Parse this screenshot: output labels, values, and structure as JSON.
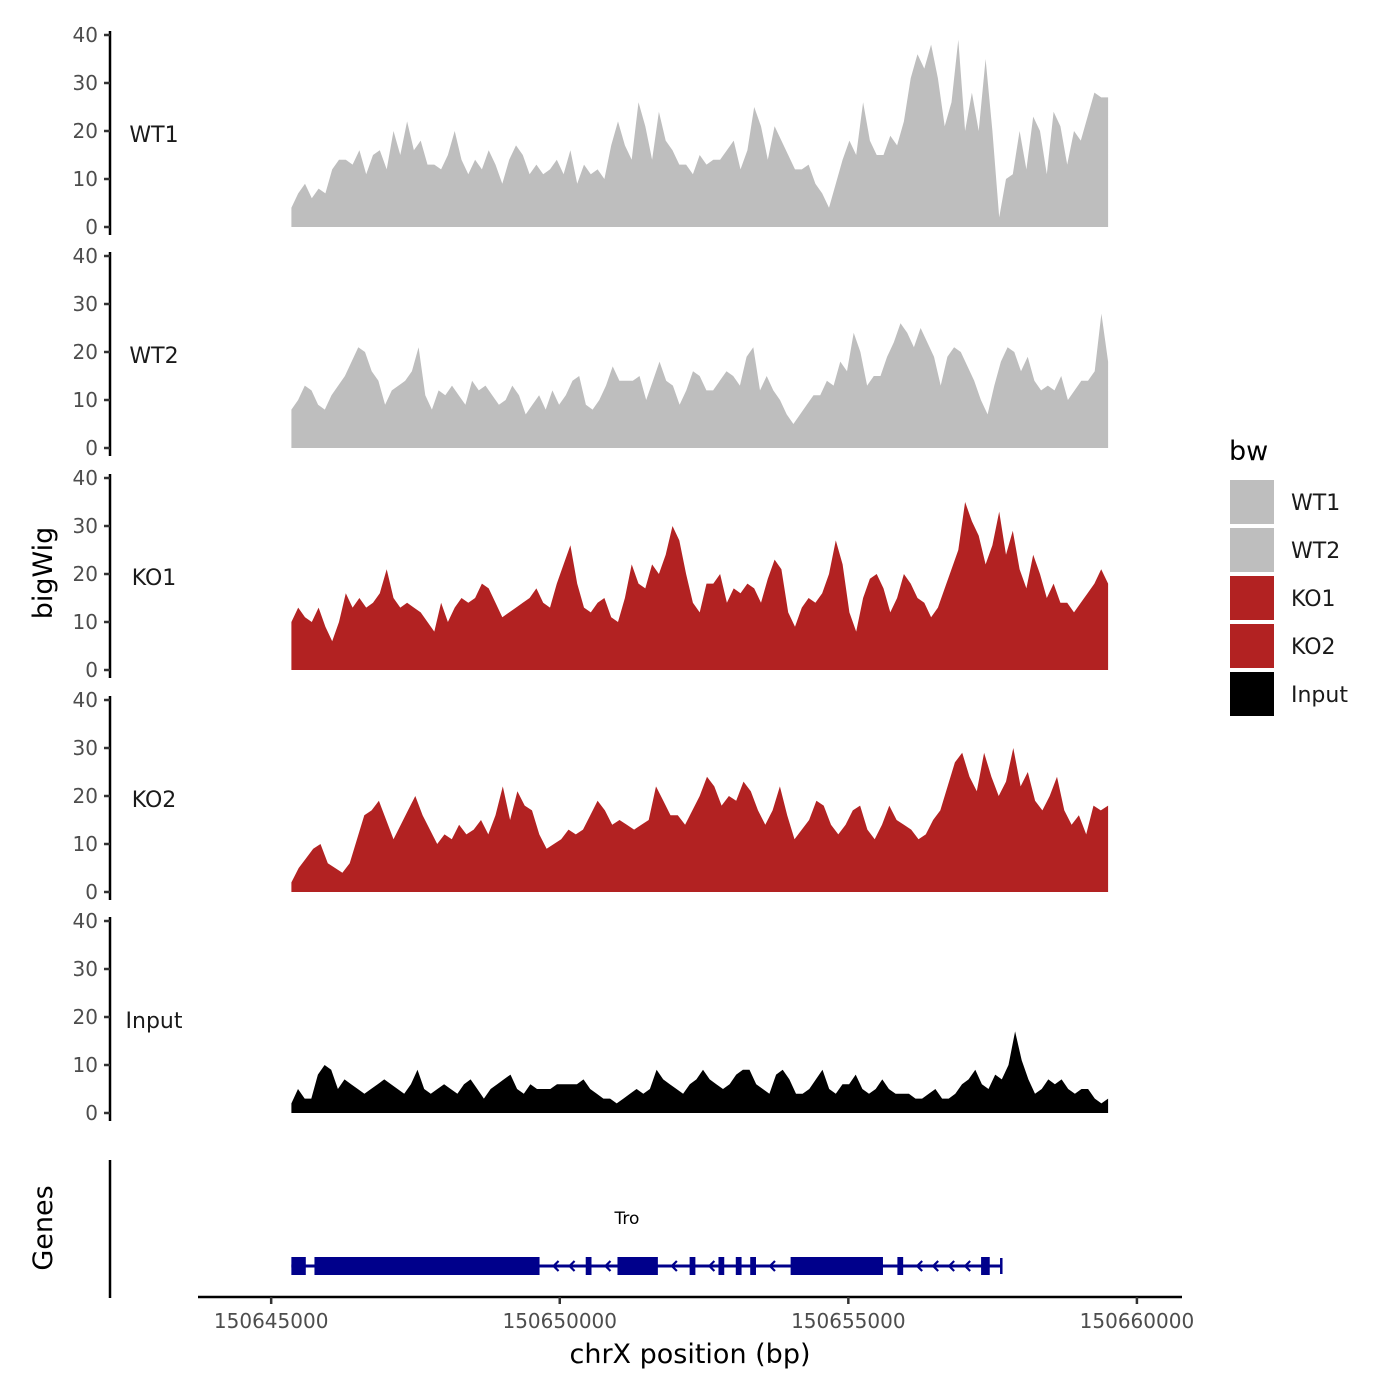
{
  "chart_data": {
    "type": "area",
    "title": "",
    "ylabel": "bigWig",
    "xlabel": "chrX position (bp)",
    "genes_label": "Genes",
    "xlim": [
      150644200,
      150660400
    ],
    "x_ticks": [
      150645000,
      150650000,
      150655000,
      150660000
    ],
    "x_tick_labels": [
      "150645000",
      "150650000",
      "150655000",
      "150660000"
    ],
    "ylim": [
      0,
      40
    ],
    "y_ticks": [
      0,
      10,
      20,
      30,
      40
    ],
    "y_tick_labels": [
      "0",
      "10",
      "20",
      "30",
      "40"
    ],
    "legend": {
      "title": "bw",
      "position": "right",
      "items": [
        {
          "label": "WT1",
          "color": "#bebebe"
        },
        {
          "label": "WT2",
          "color": "#bebebe"
        },
        {
          "label": "KO1",
          "color": "#b22222"
        },
        {
          "label": "KO2",
          "color": "#b22222"
        },
        {
          "label": "Input",
          "color": "#000000"
        }
      ]
    },
    "series": [
      {
        "name": "WT1",
        "color": "#bebebe",
        "x_start": 150645350,
        "x_end": 150659500,
        "values": [
          4,
          7,
          9,
          6,
          8,
          7,
          12,
          14,
          14,
          13,
          16,
          11,
          15,
          16,
          12,
          20,
          15,
          22,
          16,
          18,
          13,
          13,
          12,
          15,
          20,
          14,
          11,
          14,
          12,
          16,
          13,
          9,
          14,
          17,
          15,
          11,
          13,
          11,
          12,
          14,
          11,
          16,
          9,
          13,
          11,
          12,
          10,
          17,
          22,
          17,
          14,
          26,
          21,
          14,
          24,
          18,
          16,
          13,
          13,
          11,
          15,
          13,
          14,
          14,
          16,
          18,
          12,
          16,
          25,
          21,
          14,
          21,
          18,
          15,
          12,
          12,
          13,
          9,
          7,
          4,
          9,
          14,
          18,
          15,
          26,
          18,
          15,
          15,
          19,
          17,
          22,
          31,
          36,
          33,
          38,
          31,
          21,
          26,
          39,
          20,
          28,
          20,
          35,
          20,
          2,
          10,
          11,
          20,
          12,
          23,
          20,
          11,
          24,
          21,
          13,
          20,
          18,
          23,
          28,
          27,
          27
        ]
      },
      {
        "name": "WT2",
        "color": "#bebebe",
        "x_start": 150645350,
        "x_end": 150659500,
        "values": [
          8,
          10,
          13,
          12,
          9,
          8,
          11,
          13,
          15,
          18,
          21,
          20,
          16,
          14,
          9,
          12,
          13,
          14,
          16,
          21,
          11,
          8,
          12,
          11,
          13,
          11,
          9,
          14,
          12,
          13,
          11,
          9,
          10,
          13,
          11,
          7,
          9,
          11,
          8,
          12,
          9,
          11,
          14,
          15,
          9,
          8,
          10,
          13,
          17,
          14,
          14,
          14,
          15,
          10,
          14,
          18,
          14,
          13,
          9,
          12,
          16,
          15,
          12,
          12,
          14,
          16,
          15,
          13,
          19,
          21,
          12,
          15,
          12,
          10,
          7,
          5,
          7,
          9,
          11,
          11,
          14,
          13,
          18,
          16,
          24,
          20,
          13,
          15,
          15,
          19,
          22,
          26,
          24,
          21,
          25,
          22,
          19,
          13,
          19,
          21,
          20,
          17,
          14,
          10,
          7,
          13,
          18,
          21,
          20,
          16,
          19,
          14,
          12,
          13,
          12,
          15,
          10,
          12,
          14,
          14,
          16,
          28,
          18
        ]
      },
      {
        "name": "KO1",
        "color": "#b22222",
        "x_start": 150645350,
        "x_end": 150659500,
        "values": [
          10,
          13,
          11,
          10,
          13,
          9,
          6,
          10,
          16,
          13,
          15,
          13,
          14,
          16,
          21,
          15,
          13,
          14,
          13,
          12,
          10,
          8,
          14,
          10,
          13,
          15,
          14,
          15,
          18,
          17,
          14,
          11,
          12,
          13,
          14,
          15,
          17,
          14,
          13,
          18,
          22,
          26,
          18,
          13,
          12,
          14,
          15,
          11,
          10,
          15,
          22,
          18,
          17,
          22,
          20,
          24,
          30,
          27,
          20,
          14,
          12,
          18,
          18,
          20,
          14,
          17,
          16,
          18,
          17,
          14,
          19,
          23,
          21,
          12,
          9,
          13,
          15,
          14,
          16,
          20,
          27,
          22,
          12,
          8,
          15,
          19,
          20,
          17,
          12,
          15,
          20,
          18,
          15,
          14,
          11,
          13,
          17,
          21,
          25,
          35,
          31,
          28,
          22,
          26,
          33,
          24,
          29,
          21,
          17,
          24,
          20,
          15,
          18,
          14,
          14,
          12,
          14,
          16,
          18,
          21,
          18
        ]
      },
      {
        "name": "KO2",
        "color": "#b22222",
        "x_start": 150645350,
        "x_end": 150659500,
        "values": [
          2,
          5,
          7,
          9,
          10,
          6,
          5,
          4,
          6,
          11,
          16,
          17,
          19,
          15,
          11,
          14,
          17,
          20,
          16,
          13,
          10,
          12,
          11,
          14,
          12,
          13,
          15,
          12,
          16,
          22,
          15,
          21,
          18,
          17,
          12,
          9,
          10,
          11,
          13,
          12,
          13,
          16,
          19,
          17,
          14,
          15,
          14,
          13,
          14,
          15,
          22,
          19,
          16,
          16,
          14,
          17,
          20,
          24,
          22,
          18,
          20,
          19,
          23,
          21,
          17,
          14,
          17,
          22,
          16,
          11,
          13,
          15,
          19,
          18,
          14,
          12,
          14,
          17,
          18,
          13,
          11,
          14,
          18,
          15,
          14,
          13,
          11,
          12,
          15,
          17,
          22,
          27,
          29,
          24,
          21,
          29,
          24,
          20,
          23,
          30,
          22,
          25,
          19,
          17,
          20,
          24,
          17,
          14,
          16,
          12,
          18,
          17,
          18
        ]
      },
      {
        "name": "Input",
        "color": "#000000",
        "x_start": 150645350,
        "x_end": 150659500,
        "values": [
          2,
          5,
          3,
          3,
          8,
          10,
          9,
          5,
          7,
          6,
          5,
          4,
          5,
          6,
          7,
          6,
          5,
          4,
          6,
          9,
          5,
          4,
          5,
          6,
          5,
          4,
          6,
          7,
          5,
          3,
          5,
          6,
          7,
          8,
          5,
          4,
          6,
          5,
          5,
          5,
          6,
          6,
          6,
          6,
          7,
          5,
          4,
          3,
          3,
          2,
          3,
          4,
          5,
          4,
          5,
          9,
          7,
          6,
          5,
          4,
          6,
          7,
          9,
          7,
          6,
          5,
          6,
          8,
          9,
          9,
          6,
          5,
          4,
          8,
          9,
          7,
          4,
          4,
          5,
          7,
          9,
          5,
          4,
          6,
          6,
          8,
          5,
          4,
          5,
          7,
          5,
          4,
          4,
          4,
          3,
          3,
          4,
          5,
          3,
          3,
          4,
          6,
          7,
          9,
          6,
          5,
          8,
          7,
          10,
          17,
          11,
          7,
          4,
          5,
          7,
          6,
          7,
          5,
          4,
          5,
          5,
          3,
          2,
          3
        ]
      }
    ],
    "gene": {
      "name": "Tro",
      "strand": "-",
      "start": 150645350,
      "end": 150657650,
      "exons": [
        [
          150645350,
          150645600
        ],
        [
          150645750,
          150649650
        ],
        [
          150650450,
          150650550
        ],
        [
          150651000,
          150651700
        ],
        [
          150652250,
          150652350
        ],
        [
          150652750,
          150652850
        ],
        [
          150653050,
          150653150
        ],
        [
          150653300,
          150653400
        ],
        [
          150654000,
          150655600
        ],
        [
          150655850,
          150655950
        ],
        [
          150657300,
          150657450
        ]
      ],
      "color": "#00008b"
    }
  }
}
